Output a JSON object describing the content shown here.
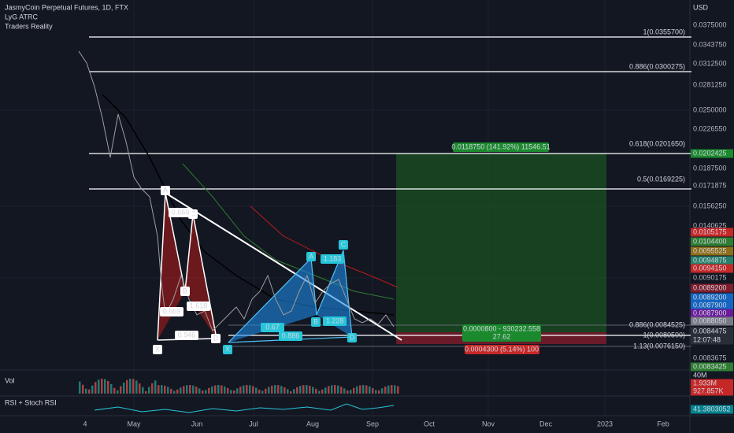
{
  "header": {
    "title": "JasmyCoin Perpetual Futures, 1D, FTX",
    "indicators": [
      "LyG ATRC",
      "Traders Reality"
    ]
  },
  "price_axis": {
    "unit": "USD",
    "labels": [
      "0.0375000",
      "0.0343750",
      "0.0312500",
      "0.0281250",
      "0.0250000",
      "0.0226550",
      "0.0187500",
      "0.0171875",
      "0.0156250",
      "0.0140625",
      "0.0090175",
      "0.0083675"
    ],
    "tags": [
      "0.0202425",
      "0.0105175",
      "0.0104400",
      "0.0095525",
      "0.0094875",
      "0.0094150",
      "0.0089200",
      "0.0089200",
      "0.0087900",
      "0.0087900",
      "0.0088050",
      "0.0084475",
      "12:07:48",
      "0.0083425",
      "40M",
      "1.933M",
      "927.857K",
      "41.3803052"
    ]
  },
  "time_axis": [
    "4",
    "May",
    "Jun",
    "Jul",
    "Aug",
    "Sep",
    "Oct",
    "Nov",
    "Dec",
    "2023",
    "Feb"
  ],
  "fib_levels": [
    "1(0.0355700)",
    "0.886(0.0300275)",
    "0.618(0.0201650)",
    "0.5(0.0169225)",
    "0.886(0.0084525)",
    "1(0.0080500)",
    "1.13(0.0076150)"
  ],
  "pattern_1": {
    "points": [
      "X",
      "A",
      "B",
      "C",
      "D"
    ],
    "ratios": [
      "0.669",
      "1.618",
      "0.669",
      "0.946"
    ]
  },
  "pattern_2": {
    "points": [
      "X",
      "A",
      "B",
      "C",
      "D"
    ],
    "ratios": [
      "0.67",
      "1.183",
      "1.228",
      "0.886"
    ]
  },
  "position": {
    "target": "0.0118750 (141.92%) 11546.51",
    "entry": "0.0000800 - 930232.558",
    "ratio": "27.62",
    "stop": "0.0004300 (5.14%) 100"
  },
  "panes": [
    "Vol",
    "RSI + Stoch RSI"
  ]
}
